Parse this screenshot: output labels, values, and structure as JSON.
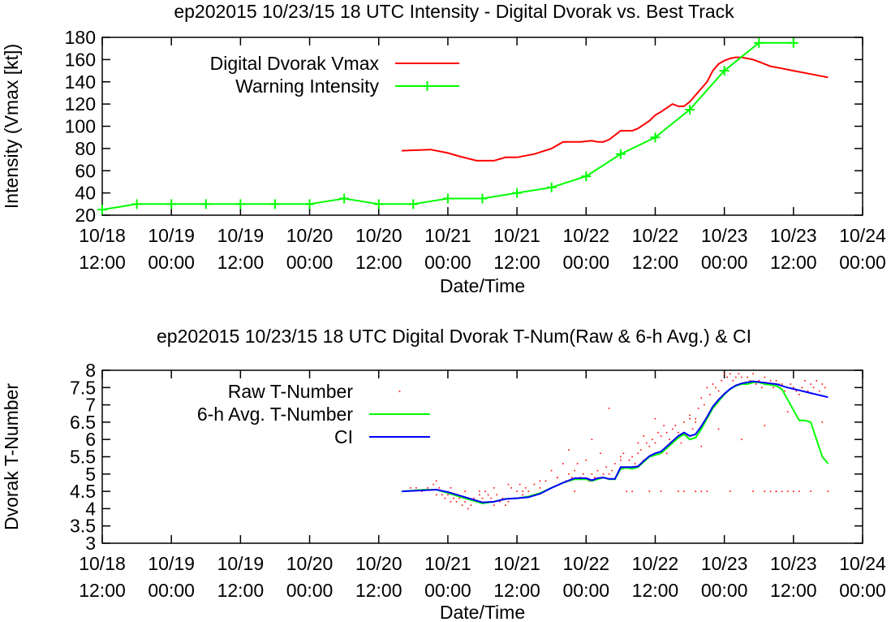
{
  "chart_data": [
    {
      "type": "line",
      "title": "ep202015 10/23/15  18 UTC Intensity - Digital Dvorak vs. Best Track",
      "xlabel": "Date/Time",
      "ylabel": "Intensity (Vmax [kt])",
      "x_unit": "hours since 10/18 12:00",
      "xlim": [
        0,
        132
      ],
      "ylim": [
        20,
        180
      ],
      "x_ticks": [
        {
          "value": 0,
          "line1": "10/18",
          "line2": "12:00"
        },
        {
          "value": 12,
          "line1": "10/19",
          "line2": "00:00"
        },
        {
          "value": 24,
          "line1": "10/19",
          "line2": "12:00"
        },
        {
          "value": 36,
          "line1": "10/20",
          "line2": "00:00"
        },
        {
          "value": 48,
          "line1": "10/20",
          "line2": "12:00"
        },
        {
          "value": 60,
          "line1": "10/21",
          "line2": "00:00"
        },
        {
          "value": 72,
          "line1": "10/21",
          "line2": "12:00"
        },
        {
          "value": 84,
          "line1": "10/22",
          "line2": "00:00"
        },
        {
          "value": 96,
          "line1": "10/22",
          "line2": "12:00"
        },
        {
          "value": 108,
          "line1": "10/23",
          "line2": "00:00"
        },
        {
          "value": 120,
          "line1": "10/23",
          "line2": "12:00"
        },
        {
          "value": 132,
          "line1": "10/24",
          "line2": "00:00"
        }
      ],
      "y_ticks": [
        {
          "value": 20,
          "label": "20"
        },
        {
          "value": 40,
          "label": "40"
        },
        {
          "value": 60,
          "label": "60"
        },
        {
          "value": 80,
          "label": "80"
        },
        {
          "value": 100,
          "label": "100"
        },
        {
          "value": 120,
          "label": "120"
        },
        {
          "value": 140,
          "label": "140"
        },
        {
          "value": 160,
          "label": "160"
        },
        {
          "value": 180,
          "label": "180"
        }
      ],
      "legend_position": "top-left",
      "series": [
        {
          "name": "Digital Dvorak Vmax",
          "color": "#ff0000",
          "marker": "none",
          "x": [
            52,
            57,
            60,
            62,
            65,
            68,
            70,
            72,
            75,
            78,
            80,
            83,
            85,
            86,
            87,
            88,
            90,
            92,
            93,
            95,
            96,
            97,
            99,
            100,
            101,
            102,
            103,
            104,
            105,
            106,
            107,
            108,
            109,
            110,
            111,
            112,
            113,
            114,
            115,
            116,
            118,
            120,
            123,
            126
          ],
          "y": [
            78,
            79,
            76,
            73,
            69,
            69,
            72,
            72,
            75,
            80,
            86,
            86,
            87,
            86,
            86,
            88,
            96,
            96,
            98,
            105,
            110,
            113,
            120,
            118,
            118,
            122,
            128,
            134,
            140,
            150,
            156,
            159,
            161,
            162,
            162,
            161,
            160,
            158,
            156,
            154,
            152,
            150,
            147,
            144
          ]
        },
        {
          "name": "Warning Intensity",
          "color": "#00ff00",
          "marker": "plus",
          "x": [
            0,
            6,
            12,
            18,
            24,
            30,
            36,
            42,
            48,
            54,
            60,
            66,
            72,
            78,
            84,
            90,
            96,
            102,
            108,
            114,
            120
          ],
          "y": [
            25,
            30,
            30,
            30,
            30,
            30,
            30,
            35,
            30,
            30,
            35,
            35,
            40,
            45,
            55,
            75,
            90,
            115,
            150,
            175,
            175
          ]
        }
      ],
      "legend": [
        {
          "label": "Digital Dvorak Vmax",
          "color": "#ff0000",
          "marker": "none"
        },
        {
          "label": "Warning Intensity",
          "color": "#00ff00",
          "marker": "plus"
        }
      ]
    },
    {
      "type": "scatter",
      "title": "ep202015 10/23/15  18 UTC Digital Dvorak T-Num(Raw & 6-h Avg.) & CI",
      "xlabel": "Date/Time",
      "ylabel": "Dvorak T-Number",
      "x_unit": "hours since 10/18 12:00",
      "xlim": [
        0,
        132
      ],
      "ylim": [
        3,
        8
      ],
      "x_ticks": [
        {
          "value": 0,
          "line1": "10/18",
          "line2": "12:00"
        },
        {
          "value": 12,
          "line1": "10/19",
          "line2": "00:00"
        },
        {
          "value": 24,
          "line1": "10/19",
          "line2": "12:00"
        },
        {
          "value": 36,
          "line1": "10/20",
          "line2": "00:00"
        },
        {
          "value": 48,
          "line1": "10/20",
          "line2": "12:00"
        },
        {
          "value": 60,
          "line1": "10/21",
          "line2": "00:00"
        },
        {
          "value": 72,
          "line1": "10/21",
          "line2": "12:00"
        },
        {
          "value": 84,
          "line1": "10/22",
          "line2": "00:00"
        },
        {
          "value": 96,
          "line1": "10/22",
          "line2": "12:00"
        },
        {
          "value": 108,
          "line1": "10/23",
          "line2": "00:00"
        },
        {
          "value": 120,
          "line1": "10/23",
          "line2": "12:00"
        },
        {
          "value": 132,
          "line1": "10/24",
          "line2": "00:00"
        }
      ],
      "y_ticks": [
        {
          "value": 3,
          "label": "3"
        },
        {
          "value": 3.5,
          "label": "3.5"
        },
        {
          "value": 4,
          "label": "4"
        },
        {
          "value": 4.5,
          "label": "4.5"
        },
        {
          "value": 5,
          "label": "5"
        },
        {
          "value": 5.5,
          "label": "5.5"
        },
        {
          "value": 6,
          "label": "6"
        },
        {
          "value": 6.5,
          "label": "6.5"
        },
        {
          "value": 7,
          "label": "7"
        },
        {
          "value": 7.5,
          "label": "7.5"
        },
        {
          "value": 8,
          "label": "8"
        }
      ],
      "legend_position": "top-left",
      "series": [
        {
          "name": "Raw T-Number",
          "color": "#ff0000",
          "marker": "dot",
          "x": [
            52.5,
            53.5,
            54.5,
            55.5,
            56.5,
            57.5,
            58,
            58.5,
            59,
            59.5,
            60,
            60.5,
            61,
            61.5,
            62,
            62.5,
            63,
            63.5,
            64,
            64.5,
            65,
            65.5,
            66,
            66.5,
            67,
            67.5,
            68,
            68.5,
            69,
            69.5,
            70,
            70.5,
            71,
            71.5,
            72,
            72.5,
            73,
            73.5,
            74,
            75,
            76,
            77,
            78,
            79,
            80,
            80.5,
            81,
            81.5,
            82,
            82.5,
            83,
            83.5,
            84,
            84.5,
            85,
            85.5,
            86,
            86.5,
            87,
            87.5,
            88,
            88.5,
            89,
            89.5,
            90,
            90.5,
            91,
            91.5,
            92,
            92.5,
            93,
            93.5,
            94,
            94.5,
            95,
            95.5,
            96,
            96.5,
            97,
            97.5,
            98,
            98.5,
            99,
            99.5,
            100,
            100.5,
            101,
            101.5,
            102,
            102.5,
            103,
            103.5,
            104,
            104.5,
            105,
            105.5,
            106,
            106.5,
            107,
            107.5,
            108,
            108.5,
            109,
            109.5,
            110,
            110.5,
            111,
            111.5,
            112,
            112.5,
            113,
            113.5,
            114,
            114.5,
            115,
            115.5,
            116,
            116.5,
            117,
            117.5,
            118,
            118.5,
            119,
            119.5,
            120,
            120.5,
            121,
            121.5,
            122,
            122.5,
            123,
            123.5,
            124,
            124.5,
            125,
            125.5,
            126,
            58,
            60.5,
            63,
            65.5,
            68,
            70.5,
            73,
            76,
            79,
            81,
            82,
            85,
            87,
            88,
            90,
            91,
            92,
            93,
            94,
            95,
            96,
            97,
            98,
            100,
            101,
            103,
            104,
            105,
            107,
            109,
            111,
            113,
            115,
            117,
            119,
            121,
            123,
            125,
            102,
            103,
            104,
            115,
            116,
            117,
            118,
            119,
            120
          ],
          "y": [
            4.5,
            4.6,
            4.6,
            4.5,
            4.6,
            4.7,
            4.8,
            4.6,
            4.4,
            4.3,
            4.4,
            4.2,
            4.3,
            4.2,
            4.3,
            4.1,
            4.2,
            4.0,
            4.1,
            4.3,
            4.2,
            4.4,
            4.3,
            4.5,
            4.4,
            4.3,
            4.1,
            4.4,
            4.2,
            4.3,
            4.1,
            4.2,
            4.6,
            4.3,
            4.5,
            4.7,
            4.4,
            4.6,
            4.5,
            4.7,
            4.6,
            4.8,
            5.1,
            4.9,
            5.3,
            4.8,
            5.0,
            4.9,
            5.1,
            5.3,
            4.9,
            5.0,
            5.4,
            4.8,
            5.0,
            4.9,
            5.1,
            5.6,
            4.9,
            5.2,
            5.0,
            5.1,
            5.3,
            5.0,
            5.4,
            5.6,
            5.2,
            5.4,
            5.5,
            5.3,
            5.6,
            5.7,
            5.4,
            5.9,
            5.8,
            6.0,
            5.9,
            6.2,
            6.1,
            6.4,
            6.2,
            6.0,
            6.3,
            6.4,
            6.2,
            5.9,
            6.5,
            6.1,
            6.7,
            6.3,
            6.6,
            6.9,
            7.2,
            7.0,
            7.5,
            7.3,
            7.6,
            7.5,
            7.4,
            7.7,
            7.9,
            7.8,
            7.9,
            7.7,
            7.8,
            7.9,
            7.8,
            7.6,
            7.8,
            7.7,
            7.9,
            7.6,
            7.7,
            7.5,
            7.8,
            7.6,
            7.7,
            7.5,
            7.7,
            7.6,
            7.6,
            7.4,
            7.5,
            7.6,
            7.5,
            7.4,
            7.3,
            7.5,
            7.7,
            7.4,
            7.6,
            7.5,
            7.7,
            7.4,
            7.6,
            7.5,
            4.5,
            4.4,
            4.6,
            4.5,
            4.5,
            4.6,
            4.7,
            4.5,
            4.8,
            4.9,
            5.7,
            4.5,
            6.0,
            5.0,
            6.9,
            5.5,
            4.5,
            4.5,
            5.9,
            6.1,
            4.5,
            6.6,
            4.5,
            5.6,
            4.5,
            4.5,
            6.5,
            5.8,
            4.5,
            6.3,
            4.5,
            6.0,
            4.5,
            6.4,
            4.5,
            6.8,
            4.5,
            4.5,
            6.5,
            6.6,
            4.5,
            4.5,
            4.5,
            4.5,
            4.5,
            4.5,
            4.5,
            4.5
          ]
        },
        {
          "name": "6-h Avg. T-Number",
          "color": "#00ff00",
          "marker": "none",
          "x": [
            52,
            56,
            58,
            60,
            62,
            64,
            66,
            68,
            70,
            72,
            74,
            76,
            78,
            80,
            82,
            84,
            85,
            86,
            87,
            88,
            89,
            90,
            91,
            92,
            93,
            94,
            95,
            96,
            97,
            98,
            99,
            100,
            101,
            102,
            103,
            104,
            105,
            106,
            107,
            108,
            109,
            110,
            111,
            112,
            113,
            114,
            115,
            116,
            117,
            118,
            119,
            120,
            121,
            122,
            123,
            124,
            125,
            126
          ],
          "y": [
            4.5,
            4.55,
            4.55,
            4.45,
            4.35,
            4.25,
            4.15,
            4.2,
            4.28,
            4.3,
            4.35,
            4.45,
            4.6,
            4.75,
            4.85,
            4.85,
            4.8,
            4.85,
            4.9,
            4.85,
            4.85,
            5.15,
            5.18,
            5.15,
            5.2,
            5.35,
            5.5,
            5.55,
            5.6,
            5.75,
            5.9,
            6.05,
            6.15,
            6.0,
            6.05,
            6.3,
            6.6,
            6.9,
            7.1,
            7.3,
            7.45,
            7.55,
            7.6,
            7.6,
            7.65,
            7.65,
            7.6,
            7.58,
            7.55,
            7.45,
            7.15,
            6.85,
            6.55,
            6.55,
            6.5,
            6.0,
            5.5,
            5.3
          ]
        },
        {
          "name": "CI",
          "color": "#0000ff",
          "marker": "none",
          "x": [
            52,
            56,
            58,
            60,
            62,
            64,
            66,
            68,
            70,
            72,
            74,
            76,
            78,
            80,
            82,
            84,
            85,
            86,
            87,
            88,
            89,
            90,
            91,
            92,
            93,
            94,
            95,
            96,
            97,
            98,
            99,
            100,
            101,
            102,
            103,
            104,
            105,
            106,
            107,
            108,
            109,
            110,
            111,
            112,
            113,
            114,
            115,
            116,
            117,
            118,
            119,
            120,
            121,
            122,
            123,
            124,
            125,
            126
          ],
          "y": [
            4.5,
            4.53,
            4.55,
            4.48,
            4.38,
            4.28,
            4.18,
            4.2,
            4.28,
            4.3,
            4.33,
            4.43,
            4.6,
            4.75,
            4.88,
            4.88,
            4.82,
            4.88,
            4.9,
            4.86,
            4.86,
            5.2,
            5.2,
            5.2,
            5.22,
            5.38,
            5.52,
            5.6,
            5.65,
            5.8,
            5.95,
            6.1,
            6.2,
            6.1,
            6.15,
            6.38,
            6.65,
            6.95,
            7.15,
            7.32,
            7.46,
            7.56,
            7.62,
            7.65,
            7.68,
            7.66,
            7.64,
            7.62,
            7.6,
            7.55,
            7.5,
            7.46,
            7.42,
            7.38,
            7.34,
            7.3,
            7.26,
            7.22
          ]
        }
      ],
      "legend": [
        {
          "label": "Raw T-Number",
          "color": "#ff0000",
          "marker": "dot"
        },
        {
          "label": "6-h Avg. T-Number",
          "color": "#00ff00",
          "marker": "none"
        },
        {
          "label": "CI",
          "color": "#0000ff",
          "marker": "none"
        }
      ]
    }
  ]
}
